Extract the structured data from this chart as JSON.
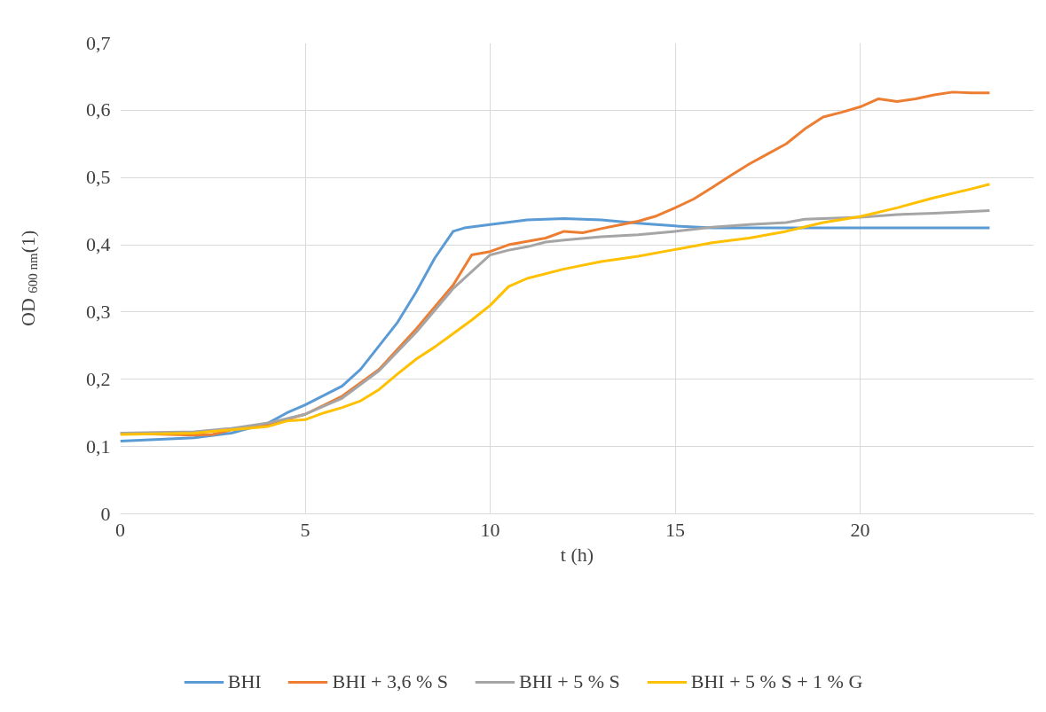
{
  "chart_data": {
    "type": "line",
    "xlabel": "t (h)",
    "ylabel": "OD $_{600 nm}$(1)",
    "xlim": [
      0,
      24.7
    ],
    "xticks": [
      0,
      5,
      10,
      15,
      20
    ],
    "ylim": [
      0,
      0.7
    ],
    "yticks": [
      0,
      {
        "value": 0.1,
        "label": "0,1"
      },
      {
        "value": 0.2,
        "label": "0,2"
      },
      {
        "value": 0.3,
        "label": "0,3"
      },
      {
        "value": 0.4,
        "label": "0,4"
      },
      {
        "value": 0.5,
        "label": "0,5"
      },
      {
        "value": 0.6,
        "label": "0,6"
      },
      {
        "value": 0.7,
        "label": "0,7"
      }
    ],
    "grid": true,
    "legend": "bottom",
    "marker": "none",
    "line_style": "solid",
    "series": [
      {
        "name": "BHI",
        "color": "#5b9bd5",
        "x": [
          0,
          2,
          3,
          4,
          4.5,
          5,
          6,
          6.5,
          7,
          7.5,
          8,
          8.5,
          9,
          9.3,
          10,
          11,
          12,
          13,
          14,
          15,
          16,
          18,
          20,
          22,
          23.5
        ],
        "values": [
          0.108,
          0.113,
          0.12,
          0.135,
          0.15,
          0.162,
          0.19,
          0.215,
          0.25,
          0.285,
          0.33,
          0.38,
          0.42,
          0.425,
          0.43,
          0.437,
          0.439,
          0.437,
          0.432,
          0.428,
          0.425,
          0.425,
          0.425,
          0.425,
          0.425
        ]
      },
      {
        "name": "BHI + 3,6 % S",
        "color": "#ed7d31",
        "x": [
          0,
          2,
          2.5,
          3,
          4,
          5,
          6,
          7,
          8,
          9,
          9.5,
          10,
          10.5,
          11.5,
          12,
          12.5,
          13,
          14,
          14.5,
          15,
          15.5,
          16,
          16.5,
          17,
          17.5,
          18,
          18.5,
          19,
          19.5,
          20,
          20.5,
          21,
          21.5,
          22,
          22.5,
          23,
          23.5
        ],
        "values": [
          0.12,
          0.117,
          0.118,
          0.125,
          0.133,
          0.148,
          0.175,
          0.215,
          0.275,
          0.34,
          0.385,
          0.39,
          0.4,
          0.41,
          0.42,
          0.418,
          0.424,
          0.435,
          0.443,
          0.455,
          0.468,
          0.485,
          0.503,
          0.52,
          0.535,
          0.55,
          0.572,
          0.59,
          0.597,
          0.605,
          0.617,
          0.613,
          0.617,
          0.623,
          0.627,
          0.626,
          0.626
        ]
      },
      {
        "name": "BHI + 5 % S",
        "color": "#a5a5a5",
        "x": [
          0,
          2,
          3,
          4,
          5,
          6,
          7,
          8,
          9,
          9.5,
          10,
          10.5,
          11,
          11.5,
          12,
          13,
          14,
          15,
          16,
          17,
          18,
          18.5,
          20,
          21,
          22,
          23.5
        ],
        "values": [
          0.12,
          0.122,
          0.127,
          0.135,
          0.148,
          0.172,
          0.213,
          0.27,
          0.335,
          0.36,
          0.385,
          0.392,
          0.397,
          0.404,
          0.407,
          0.412,
          0.415,
          0.42,
          0.426,
          0.43,
          0.433,
          0.438,
          0.441,
          0.445,
          0.447,
          0.451
        ]
      },
      {
        "name": "BHI + 5 % S + 1 % G",
        "color": "#ffc000",
        "x": [
          0,
          2,
          3,
          4,
          4.5,
          5,
          5.5,
          6,
          6.5,
          7,
          7.5,
          8,
          8.5,
          9,
          9.5,
          10,
          10.5,
          11,
          12,
          13,
          14,
          15,
          16,
          17,
          18,
          19,
          20,
          21,
          22,
          23,
          23.5
        ],
        "values": [
          0.118,
          0.12,
          0.125,
          0.13,
          0.138,
          0.14,
          0.15,
          0.158,
          0.168,
          0.185,
          0.208,
          0.23,
          0.248,
          0.268,
          0.288,
          0.31,
          0.338,
          0.35,
          0.364,
          0.375,
          0.383,
          0.393,
          0.403,
          0.41,
          0.42,
          0.433,
          0.442,
          0.455,
          0.47,
          0.483,
          0.49
        ]
      }
    ]
  }
}
